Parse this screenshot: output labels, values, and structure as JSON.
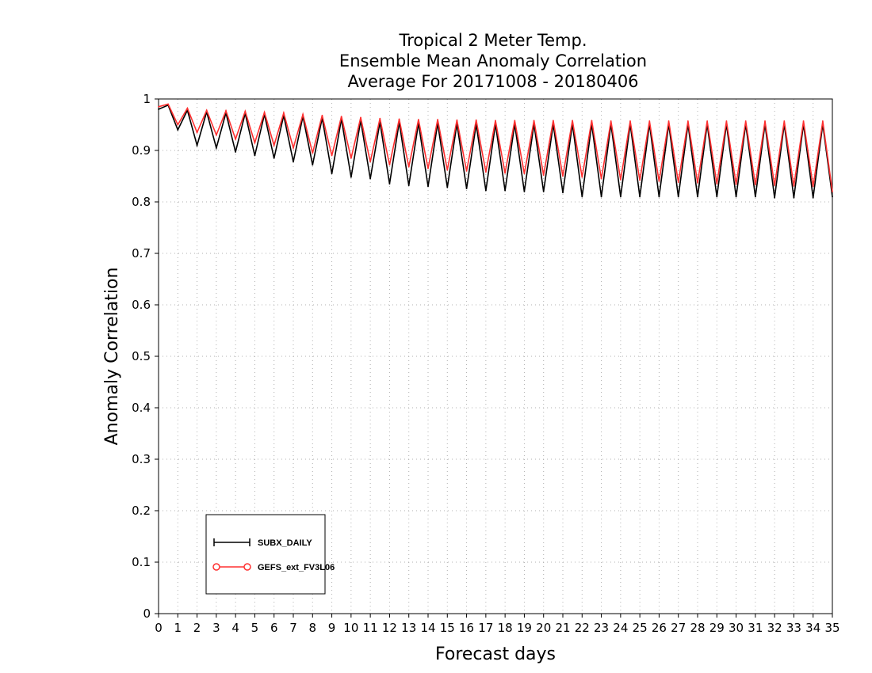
{
  "chart_data": {
    "type": "line",
    "title": [
      "Tropical 2 Meter Temp.",
      "Ensemble Mean Anomaly Correlation",
      "Average For 20171008 - 20180406"
    ],
    "xlabel": "Forecast days",
    "ylabel": "Anomaly Correlation",
    "xlim": [
      0,
      35
    ],
    "ylim": [
      0,
      1
    ],
    "x_ticks": [
      "0",
      "1",
      "2",
      "3",
      "4",
      "5",
      "6",
      "7",
      "8",
      "9",
      "10",
      "11",
      "12",
      "13",
      "14",
      "15",
      "16",
      "17",
      "18",
      "19",
      "20",
      "21",
      "22",
      "23",
      "24",
      "25",
      "26",
      "27",
      "28",
      "29",
      "30",
      "31",
      "32",
      "33",
      "34",
      "35"
    ],
    "y_ticks": [
      "0",
      "0.1",
      "0.2",
      "0.3",
      "0.4",
      "0.5",
      "0.6",
      "0.7",
      "0.8",
      "0.9",
      "1"
    ],
    "grid": true,
    "legend_position": "bottom-left",
    "x": [
      0,
      0.5,
      1,
      1.5,
      2,
      2.5,
      3,
      3.5,
      4,
      4.5,
      5,
      5.5,
      6,
      6.5,
      7,
      7.5,
      8,
      8.5,
      9,
      9.5,
      10,
      10.5,
      11,
      11.5,
      12,
      12.5,
      13,
      13.5,
      14,
      14.5,
      15,
      15.5,
      16,
      16.5,
      17,
      17.5,
      18,
      18.5,
      19,
      19.5,
      20,
      20.5,
      21,
      21.5,
      22,
      22.5,
      23,
      23.5,
      24,
      24.5,
      25,
      25.5,
      26,
      26.5,
      27,
      27.5,
      28,
      28.5,
      29,
      29.5,
      30,
      30.5,
      31,
      31.5,
      32,
      32.5,
      33,
      33.5,
      34,
      34.5,
      35
    ],
    "series": [
      {
        "name": "SUBX_DAILY",
        "color": "#000000",
        "marker": "plus",
        "values": [
          0.98,
          0.988,
          0.94,
          0.978,
          0.91,
          0.975,
          0.905,
          0.973,
          0.897,
          0.972,
          0.89,
          0.97,
          0.885,
          0.968,
          0.878,
          0.966,
          0.872,
          0.963,
          0.855,
          0.961,
          0.848,
          0.958,
          0.845,
          0.955,
          0.835,
          0.955,
          0.832,
          0.953,
          0.83,
          0.953,
          0.828,
          0.952,
          0.826,
          0.951,
          0.822,
          0.951,
          0.822,
          0.951,
          0.82,
          0.951,
          0.82,
          0.951,
          0.818,
          0.951,
          0.81,
          0.951,
          0.81,
          0.951,
          0.81,
          0.951,
          0.81,
          0.951,
          0.81,
          0.951,
          0.81,
          0.951,
          0.81,
          0.951,
          0.81,
          0.951,
          0.81,
          0.951,
          0.81,
          0.951,
          0.808,
          0.951,
          0.808,
          0.951,
          0.808,
          0.951,
          0.81
        ]
      },
      {
        "name": "GEFS_ext_FV3L06",
        "color": "#ff3030",
        "marker": "circle",
        "values": [
          0.985,
          0.99,
          0.95,
          0.982,
          0.935,
          0.978,
          0.93,
          0.977,
          0.922,
          0.976,
          0.915,
          0.974,
          0.91,
          0.973,
          0.905,
          0.97,
          0.895,
          0.968,
          0.89,
          0.966,
          0.885,
          0.964,
          0.878,
          0.962,
          0.872,
          0.961,
          0.868,
          0.96,
          0.865,
          0.96,
          0.862,
          0.959,
          0.86,
          0.959,
          0.858,
          0.958,
          0.856,
          0.958,
          0.855,
          0.958,
          0.852,
          0.958,
          0.85,
          0.958,
          0.848,
          0.958,
          0.845,
          0.957,
          0.843,
          0.957,
          0.842,
          0.957,
          0.84,
          0.957,
          0.838,
          0.957,
          0.837,
          0.957,
          0.835,
          0.957,
          0.834,
          0.957,
          0.833,
          0.957,
          0.832,
          0.957,
          0.831,
          0.957,
          0.83,
          0.957,
          0.82
        ]
      }
    ]
  }
}
